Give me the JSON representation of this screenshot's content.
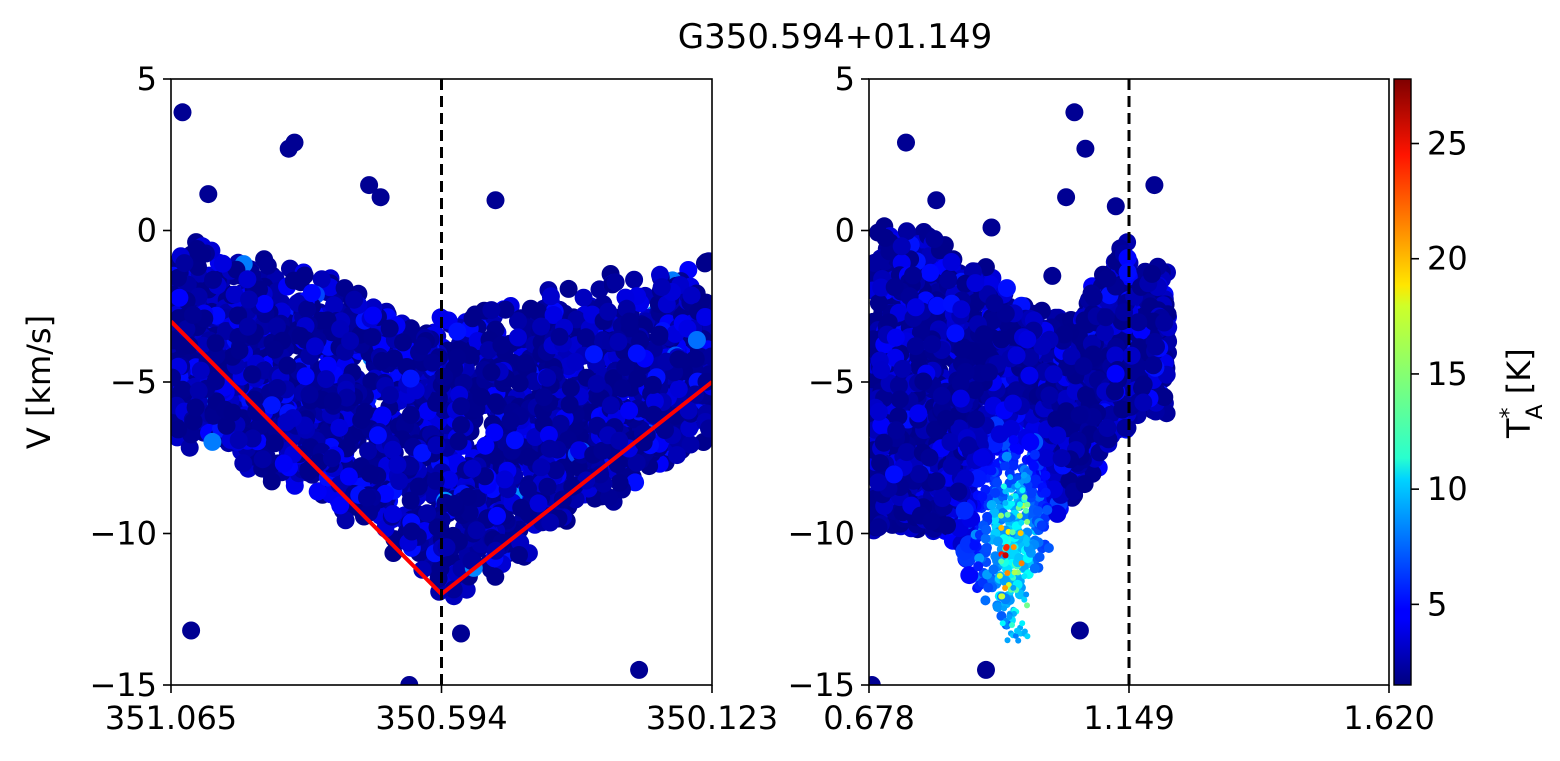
{
  "figure": {
    "title": "G350.594+01.149"
  },
  "chart_data": [
    {
      "type": "scatter",
      "panel": "left",
      "xlabel": "",
      "ylabel": "V [km/s]",
      "xlim": [
        351.065,
        350.123
      ],
      "ylim": [
        -15,
        5
      ],
      "x_ticks": [
        "351.065",
        "350.594",
        "350.123"
      ],
      "x_tick_values": [
        351.065,
        350.594,
        350.123
      ],
      "y_ticks": [
        "5",
        "0",
        "−5",
        "−10",
        "−15"
      ],
      "y_tick_values": [
        5,
        0,
        -5,
        -10,
        -15
      ],
      "vertical_line": {
        "x": 350.594,
        "style": "dashed",
        "color": "#000000"
      },
      "fit_line": {
        "color": "#ff0000",
        "points": [
          [
            351.065,
            -3.0
          ],
          [
            350.594,
            -12.0
          ],
          [
            350.123,
            -5.0
          ]
        ]
      },
      "cluster": {
        "description_points": "dense PV scatter of T_A* values, mostly 2-6 K",
        "outliers": [
          [
            351.045,
            3.9
          ],
          [
            350.85,
            2.9
          ],
          [
            350.86,
            2.7
          ],
          [
            351.0,
            1.2
          ],
          [
            350.72,
            1.5
          ],
          [
            350.7,
            1.1
          ],
          [
            351.03,
            -13.2
          ],
          [
            350.25,
            -14.5
          ],
          [
            350.65,
            -15.0
          ],
          [
            350.56,
            -13.3
          ],
          [
            350.5,
            1.0
          ]
        ]
      }
    },
    {
      "type": "scatter",
      "panel": "right",
      "xlabel": "",
      "ylabel": "",
      "xlim": [
        0.678,
        1.62
      ],
      "ylim": [
        -15,
        5
      ],
      "x_ticks": [
        "0.678",
        "1.149",
        "1.620"
      ],
      "x_tick_values": [
        0.678,
        1.149,
        1.62
      ],
      "y_ticks": [
        "5",
        "0",
        "−5",
        "−10",
        "−15"
      ],
      "y_tick_values": [
        5,
        0,
        -5,
        -10,
        -15
      ],
      "vertical_line": {
        "x": 1.149,
        "style": "dashed",
        "color": "#000000"
      },
      "hot_spot": {
        "x": 0.94,
        "v": -10.8,
        "peak_K": 27
      },
      "cluster": {
        "description_points": "dense PV scatter of T_A* values, peak near v=-11",
        "outliers": [
          [
            1.05,
            3.9
          ],
          [
            0.745,
            2.9
          ],
          [
            1.07,
            2.7
          ],
          [
            0.8,
            1.0
          ],
          [
            0.9,
            0.1
          ],
          [
            1.035,
            1.1
          ],
          [
            1.125,
            0.8
          ],
          [
            1.195,
            1.5
          ],
          [
            0.89,
            -14.5
          ],
          [
            1.06,
            -13.2
          ],
          [
            0.683,
            -15.0
          ],
          [
            1.01,
            -1.5
          ],
          [
            1.085,
            -2.2
          ]
        ]
      }
    }
  ],
  "colorbar": {
    "label_main": "T",
    "label_sup": "*",
    "label_sub": "A",
    "label_unit": " [K]",
    "range": [
      1.5,
      27.8
    ],
    "ticks": [
      "5",
      "10",
      "15",
      "20",
      "25"
    ],
    "tick_values": [
      5,
      10,
      15,
      20,
      25
    ],
    "colormap": "jet"
  }
}
